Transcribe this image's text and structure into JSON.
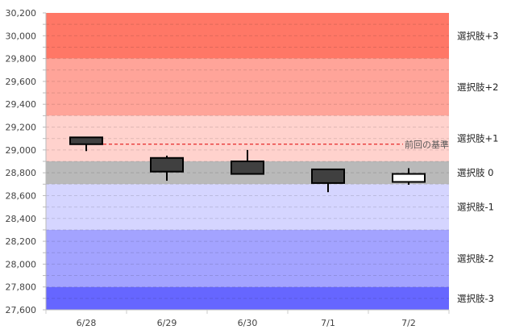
{
  "chart_data": {
    "type": "candlestick",
    "title": "",
    "xlabel": "",
    "ylabel": "",
    "categories": [
      "6/28",
      "6/29",
      "6/30",
      "7/1",
      "7/2"
    ],
    "ylim": [
      27600,
      30200
    ],
    "yticks": [
      27600,
      27800,
      28000,
      28200,
      28400,
      28600,
      28800,
      29000,
      29200,
      29400,
      29600,
      29800,
      30000,
      30200
    ],
    "ytick_labels": [
      "27,600",
      "27,800",
      "28,000",
      "28,200",
      "28,400",
      "28,600",
      "28,800",
      "29,000",
      "29,200",
      "29,400",
      "29,600",
      "29,800",
      "30,000",
      "30,200"
    ],
    "grid": true,
    "candles": [
      {
        "date": "6/28",
        "open": 29110,
        "high": 29110,
        "low": 28990,
        "close": 29050
      },
      {
        "date": "6/29",
        "open": 28930,
        "high": 28950,
        "low": 28730,
        "close": 28810
      },
      {
        "date": "6/30",
        "open": 28900,
        "high": 29000,
        "low": 28790,
        "close": 28790
      },
      {
        "date": "7/1",
        "open": 28830,
        "high": 28830,
        "low": 28630,
        "close": 28710
      },
      {
        "date": "7/2",
        "open": 28720,
        "high": 28840,
        "low": 28695,
        "close": 28790
      }
    ],
    "up_color": "#ffffff",
    "down_color": "#404040",
    "bands": [
      {
        "label": "選択肢+3",
        "from": 29800,
        "to": 30200,
        "color": "#ff7766"
      },
      {
        "label": "選択肢+2",
        "from": 29300,
        "to": 29800,
        "color": "#ffa499"
      },
      {
        "label": "選択肢+1",
        "from": 28900,
        "to": 29300,
        "color": "#ffd2cd"
      },
      {
        "label": "選択肢 0",
        "from": 28700,
        "to": 28900,
        "color": "#b9b9b9"
      },
      {
        "label": "選択肢-1",
        "from": 28300,
        "to": 28700,
        "color": "#d5d5ff"
      },
      {
        "label": "選択肢-2",
        "from": 27800,
        "to": 28300,
        "color": "#a3a3ff"
      },
      {
        "label": "選択肢-3",
        "from": 27600,
        "to": 27800,
        "color": "#6666ff"
      }
    ],
    "reference_line": {
      "label": "前回の基準",
      "value": 29050,
      "color": "#e00000"
    }
  }
}
